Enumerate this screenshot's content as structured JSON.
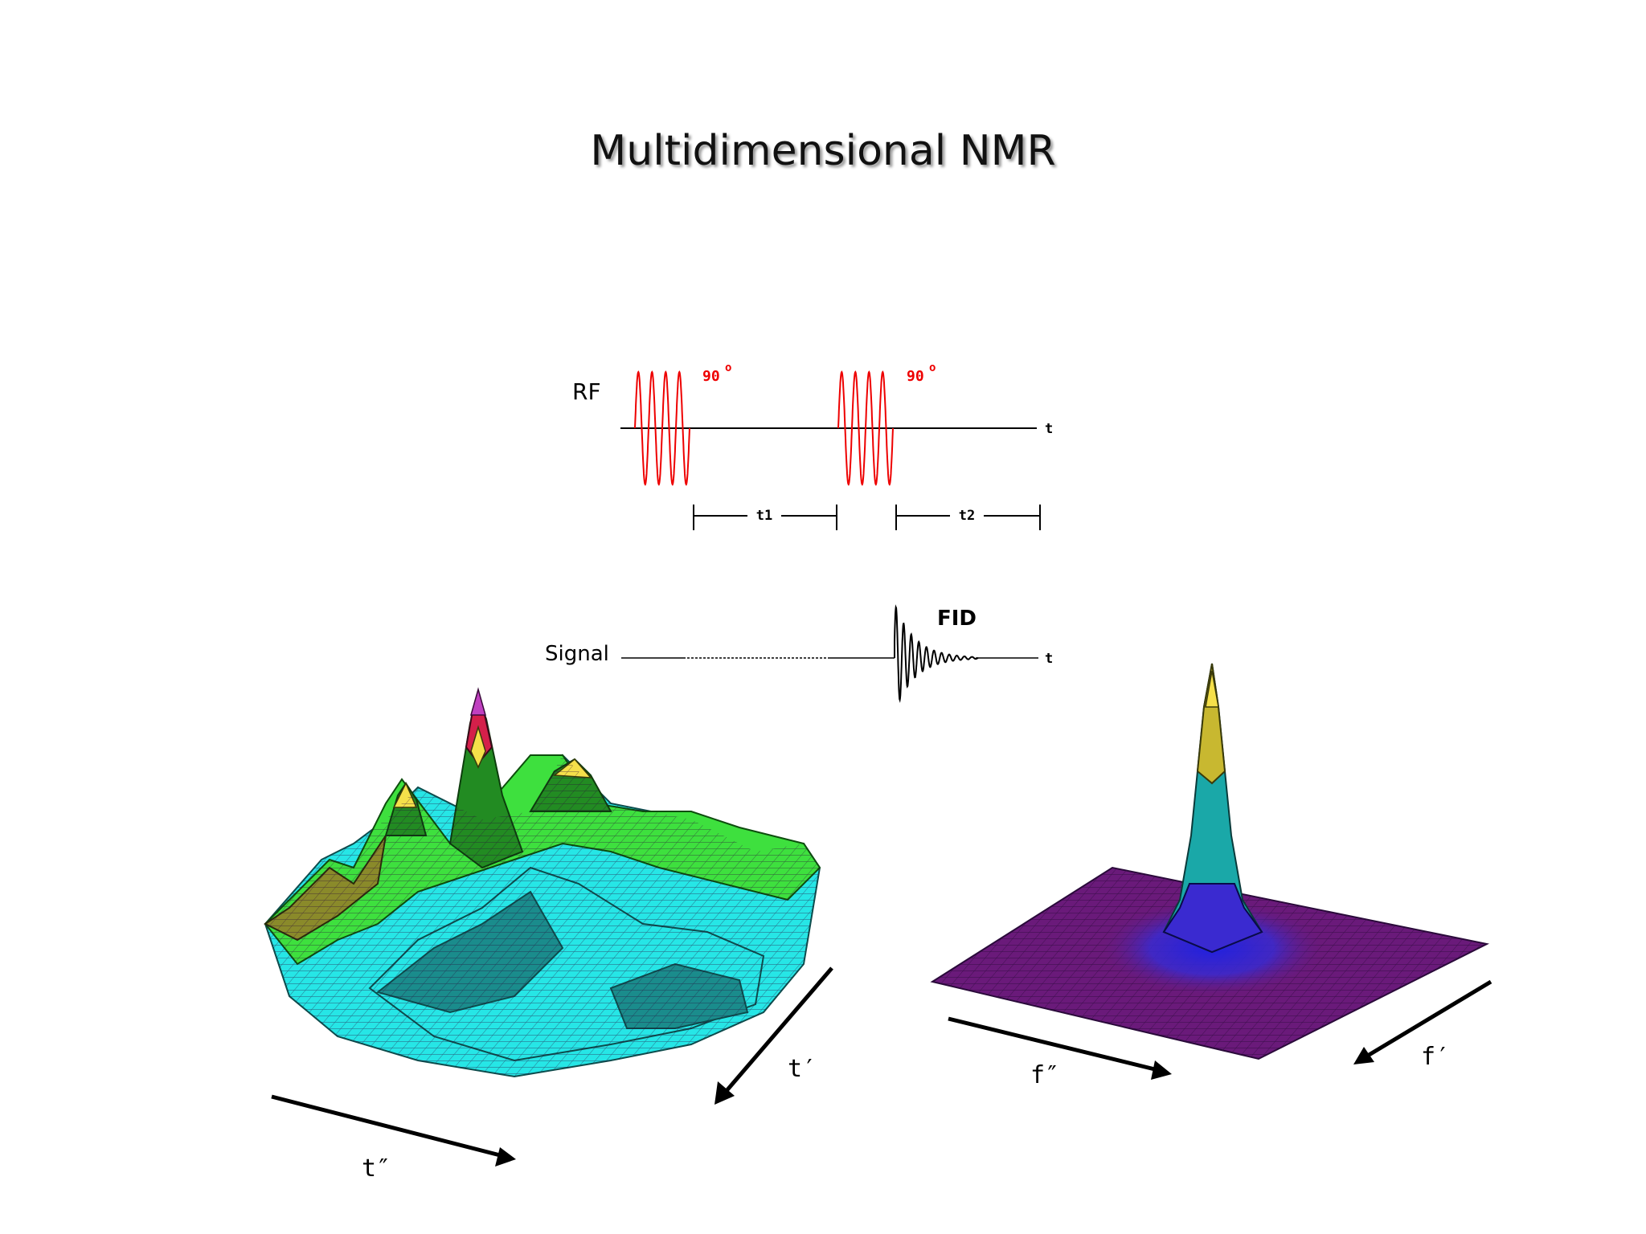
{
  "slide": {
    "title": "Multidimensional NMR"
  },
  "pulse_sequence": {
    "rf_label": "RF",
    "signal_label": "Signal",
    "pulse_angle_1": "90",
    "pulse_angle_2": "90",
    "degree_mark": "o",
    "time_axis_label_top": "t",
    "time_axis_label_bottom": "t",
    "delay_1": "t1",
    "delay_2": "t2",
    "fid_label": "FID",
    "colors": {
      "pulse": "#ee0000",
      "line": "#000000"
    }
  },
  "time_domain_surface": {
    "axis_1": "t′",
    "axis_2": "t″",
    "colors": [
      "#26e6e6",
      "#1a8c8c",
      "#3ee03e",
      "#228b22",
      "#8a8a2a",
      "#f5e04a",
      "#d4204a",
      "#c040c0"
    ]
  },
  "frequency_domain_surface": {
    "axis_1": "f′",
    "axis_2": "f″",
    "colors": [
      "#6a1a7a",
      "#3a2ad0",
      "#1aa8a8",
      "#c8b830"
    ]
  }
}
